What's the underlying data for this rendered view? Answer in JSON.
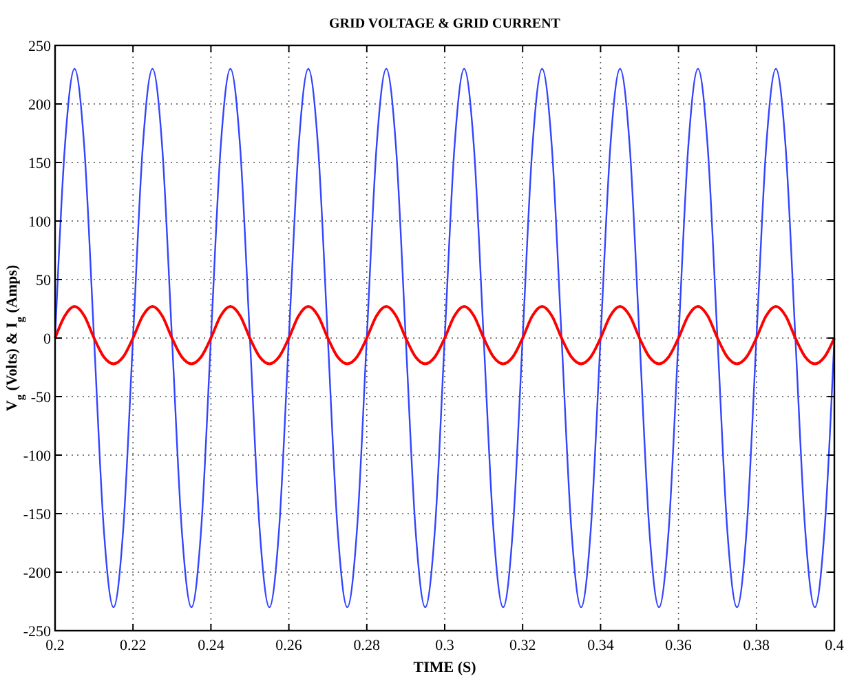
{
  "chart_data": {
    "type": "line",
    "title": "GRID VOLTAGE & GRID CURRENT",
    "xlabel": "TIME (S)",
    "ylabel": "V$_{g}$ (Volts) & I$_{g}$ (Amps)",
    "x": [
      0.2,
      0.2025,
      0.205,
      0.2075,
      0.21,
      0.2125,
      0.215,
      0.2175,
      0.22,
      0.2225,
      0.225,
      0.2275,
      0.23,
      0.2325,
      0.235,
      0.2375,
      0.24,
      0.2425,
      0.245,
      0.2475,
      0.25,
      0.2525,
      0.255,
      0.2575,
      0.26,
      0.2625,
      0.265,
      0.2675,
      0.27,
      0.2725,
      0.275,
      0.2775,
      0.28,
      0.2825,
      0.285,
      0.2875,
      0.29,
      0.2925,
      0.295,
      0.2975,
      0.3,
      0.3025,
      0.305,
      0.3075,
      0.31,
      0.3125,
      0.315,
      0.3175,
      0.32,
      0.3225,
      0.325,
      0.3275,
      0.33,
      0.3325,
      0.335,
      0.3375,
      0.34,
      0.3425,
      0.345,
      0.3475,
      0.35,
      0.3525,
      0.355,
      0.3575,
      0.36,
      0.3625,
      0.365,
      0.3675,
      0.37,
      0.3725,
      0.375,
      0.3775,
      0.38,
      0.3825,
      0.385,
      0.3875,
      0.39,
      0.3925,
      0.395,
      0.3975,
      0.4
    ],
    "series": [
      {
        "color": "#3344ff",
        "values": [
          0,
          163,
          230,
          163,
          0,
          -163,
          -230,
          -163,
          0,
          163,
          230,
          163,
          0,
          -163,
          -230,
          -163,
          0,
          163,
          230,
          163,
          0,
          -163,
          -230,
          -163,
          0,
          163,
          230,
          163,
          0,
          -163,
          -230,
          -163,
          0,
          163,
          230,
          163,
          0,
          -163,
          -230,
          -163,
          0,
          163,
          230,
          163,
          0,
          -163,
          -230,
          -163,
          0,
          163,
          230,
          163,
          0,
          -163,
          -230,
          -163,
          0,
          163,
          230,
          163,
          0,
          -163,
          -230,
          -163,
          0,
          163,
          230,
          163,
          0,
          -163,
          -230,
          -163,
          0,
          163,
          230,
          163,
          0,
          -163,
          -230,
          -163,
          0
        ]
      },
      {
        "color": "#ff0000",
        "values": [
          0,
          19,
          27,
          19,
          0,
          -16,
          -22,
          -16,
          0,
          19,
          27,
          19,
          0,
          -16,
          -22,
          -16,
          0,
          19,
          27,
          19,
          0,
          -16,
          -22,
          -16,
          0,
          19,
          27,
          19,
          0,
          -16,
          -22,
          -16,
          0,
          19,
          27,
          19,
          0,
          -16,
          -22,
          -16,
          0,
          19,
          27,
          19,
          0,
          -16,
          -22,
          -16,
          0,
          19,
          27,
          19,
          0,
          -16,
          -22,
          -16,
          0,
          19,
          27,
          19,
          0,
          -16,
          -22,
          -16,
          0,
          19,
          27,
          19,
          0,
          -16,
          -22,
          -16,
          0,
          19,
          27,
          19,
          0,
          -16,
          -22,
          -16,
          0
        ]
      }
    ],
    "xlim": [
      0.2,
      0.4
    ],
    "xticks": [
      0.2,
      0.22,
      0.24,
      0.26,
      0.28,
      0.3,
      0.32,
      0.34,
      0.36,
      0.38,
      0.4
    ],
    "ylim": [
      -250,
      250
    ],
    "yticks": [
      -250,
      -200,
      -150,
      -100,
      -50,
      0,
      50,
      100,
      150,
      200,
      250
    ],
    "grid": true,
    "line_style": "solid",
    "marker": "none"
  }
}
